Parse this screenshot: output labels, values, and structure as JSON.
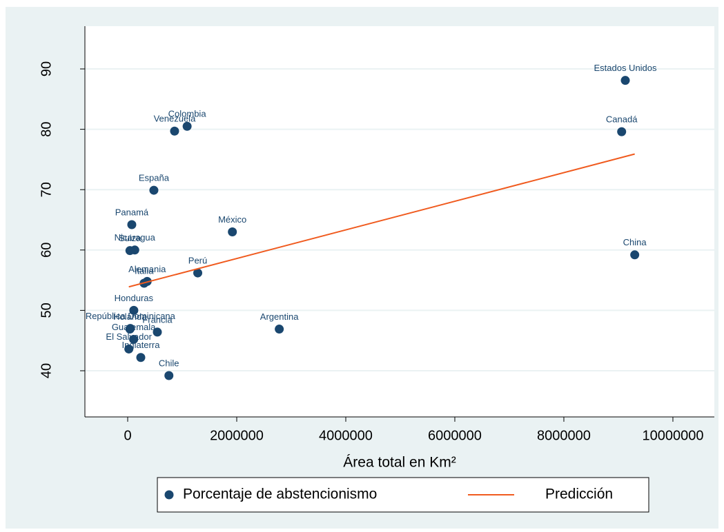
{
  "chart_data": {
    "type": "scatter",
    "x_label": "Área total en Km²",
    "xlim": [
      -785000,
      10760000
    ],
    "xticks": [
      0,
      2000000,
      4000000,
      6000000,
      8000000,
      10000000
    ],
    "ylim": [
      32.35,
      97.08
    ],
    "yticks": [
      40,
      50,
      60,
      70,
      80,
      90
    ],
    "grid": true,
    "legend": "bottom",
    "series": [
      {
        "name": "Porcentaje de abstencionismo",
        "color": "#1a476f",
        "labels": [
          "Estados Unidos",
          "Canadá",
          "China",
          "Colombia",
          "Venezuela",
          "España",
          "Panamá",
          "México",
          "Nicaragua",
          "Suiza",
          "Perú",
          "Alemania",
          "Italia",
          "Honduras",
          "República Dominicana",
          "Holanda",
          "Francia",
          "Argentina",
          "Guatemala",
          "El Salvador",
          "Inglaterra",
          "Chile"
        ],
        "x": [
          9127000,
          9060000,
          9300000,
          1090000,
          860000,
          480000,
          75000,
          1920000,
          130000,
          41000,
          1285000,
          357000,
          301000,
          112000,
          48700,
          41500,
          544000,
          2780000,
          109000,
          21000,
          240000,
          756000
        ],
        "values": [
          88.1,
          79.6,
          59.2,
          80.5,
          79.7,
          69.9,
          64.2,
          63.0,
          60.0,
          59.9,
          56.2,
          54.8,
          54.5,
          50.0,
          47.0,
          46.9,
          46.4,
          46.9,
          45.2,
          43.6,
          42.2,
          39.2
        ]
      },
      {
        "name": "Predicción",
        "color": "#f05a1e",
        "type": "line",
        "x": [
          21000,
          9300000
        ],
        "values": [
          53.9,
          75.9
        ]
      }
    ]
  }
}
